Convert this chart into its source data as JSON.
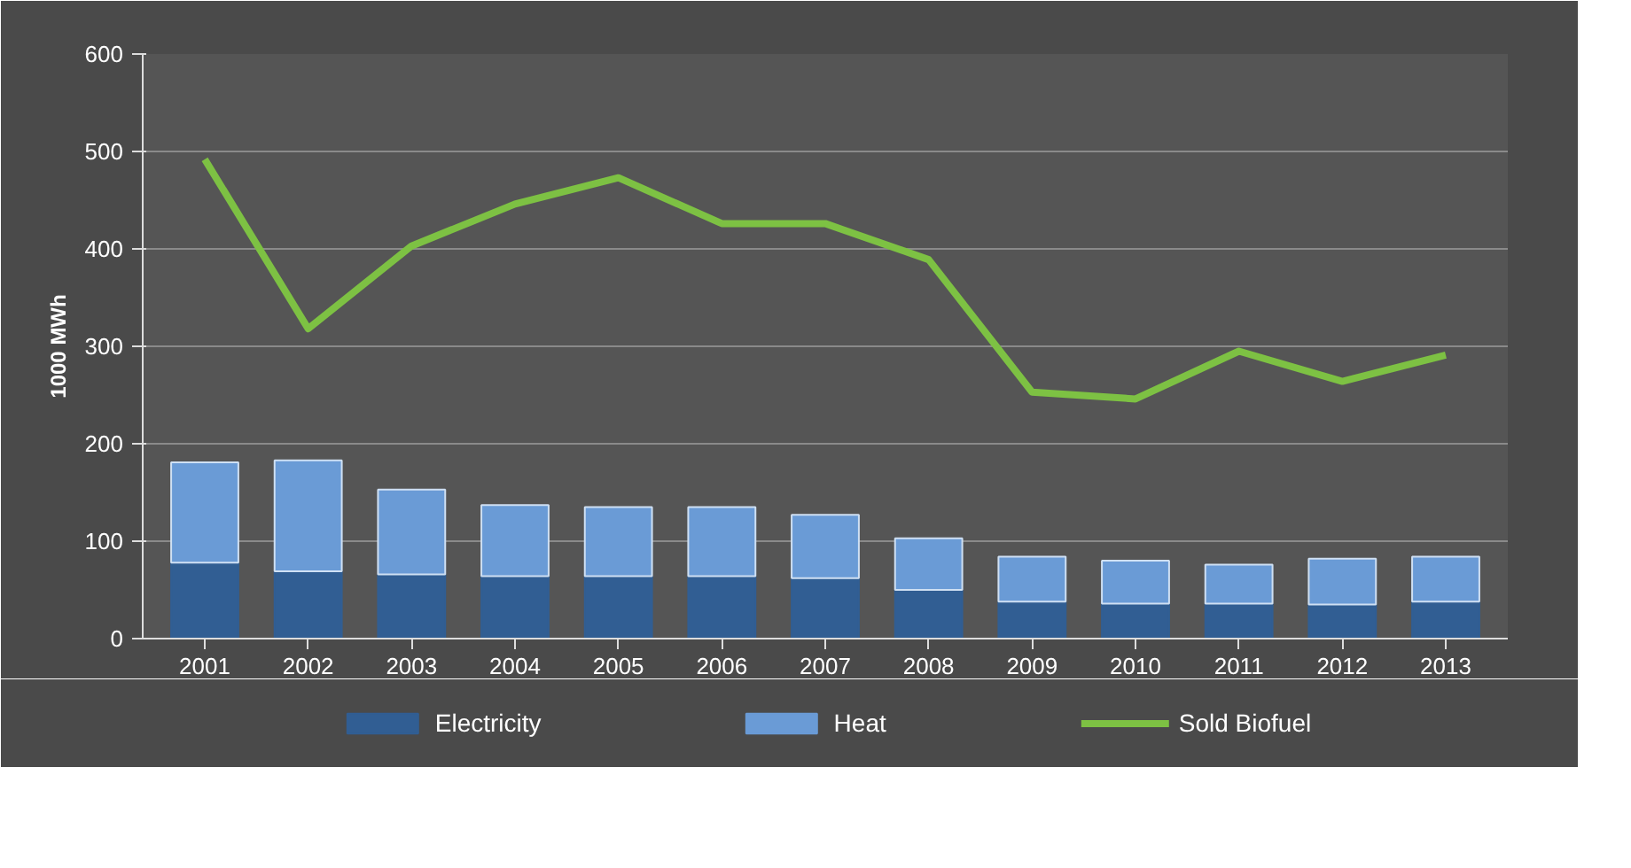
{
  "chart_data": {
    "type": "bar",
    "stacked": true,
    "ylabel": "1000 MWh",
    "categories": [
      "2001",
      "2002",
      "2003",
      "2004",
      "2005",
      "2006",
      "2007",
      "2008",
      "2009",
      "2010",
      "2011",
      "2012",
      "2013"
    ],
    "series": [
      {
        "name": "Electricity",
        "color": "#315e93",
        "values": [
          78,
          69,
          66,
          64,
          64,
          64,
          62,
          50,
          38,
          36,
          36,
          35,
          38
        ]
      },
      {
        "name": "Heat",
        "color": "#6a9bd6",
        "values": [
          103,
          114,
          87,
          73,
          71,
          71,
          65,
          53,
          46,
          44,
          40,
          47,
          46
        ]
      },
      {
        "name": "Sold Biofuel",
        "type": "line",
        "color": "#7dc143",
        "values": [
          492,
          318,
          403,
          446,
          473,
          426,
          426,
          389,
          253,
          246,
          295,
          264,
          291
        ]
      }
    ],
    "ylim": [
      0,
      600
    ],
    "yticks": [
      0,
      100,
      200,
      300,
      400,
      500,
      600
    ],
    "grid": "y",
    "legend": "bottom"
  }
}
